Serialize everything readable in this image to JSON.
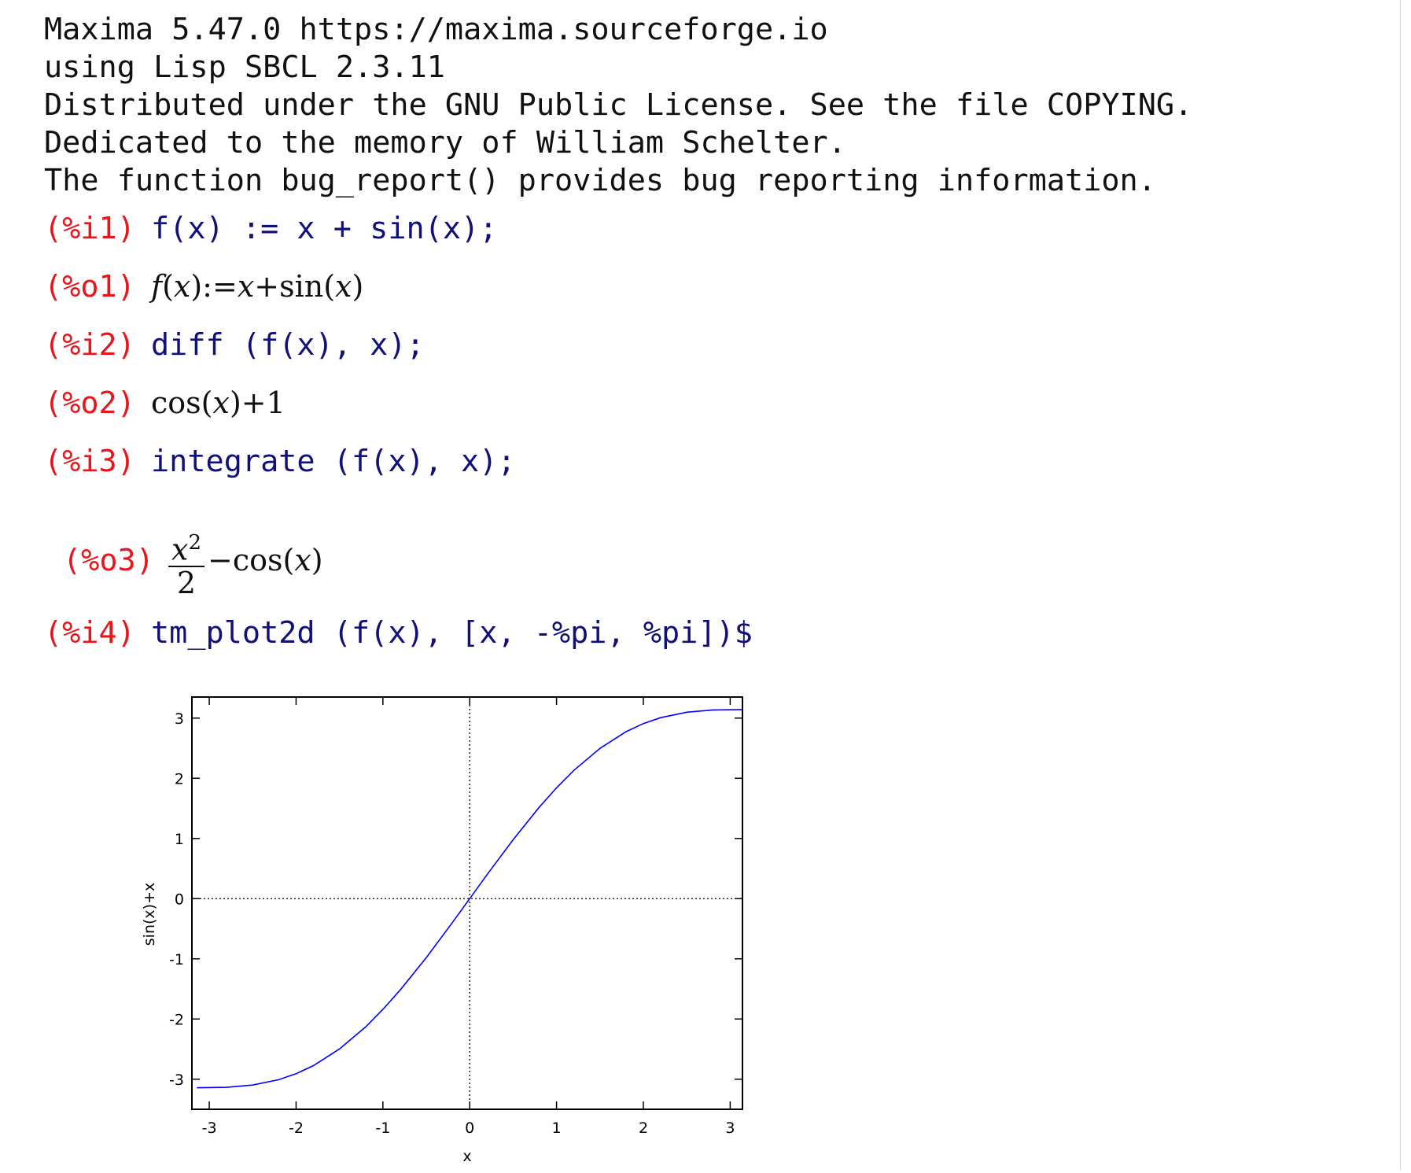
{
  "banner": {
    "line1": "Maxima 5.47.0 https://maxima.sourceforge.io",
    "line2": "using Lisp SBCL 2.3.11",
    "line3": "Distributed under the GNU Public License. See the file COPYING.",
    "line4": "Dedicated to the memory of William Schelter.",
    "line5": "The function bug_report() provides bug reporting information."
  },
  "session": {
    "i1": {
      "prompt": "(%i1)",
      "input": "f(x) := x + sin(x);"
    },
    "o1": {
      "prompt": "(%o1)",
      "f": "f",
      "x1": "x",
      "assign": "):=",
      "x2": "x",
      "plus": "+sin(",
      "x3": "x",
      "close": ")"
    },
    "i2": {
      "prompt": "(%i2)",
      "input": "diff (f(x), x);"
    },
    "o2": {
      "prompt": "(%o2)",
      "pre": "cos(",
      "x": "x",
      "post": ")+1"
    },
    "i3": {
      "prompt": "(%i3)",
      "input": "integrate (f(x), x);"
    },
    "o3": {
      "prompt": "(%o3)",
      "num": "x",
      "exp": "2",
      "den": "2",
      "post1": "−cos(",
      "x": "x",
      "post2": ")"
    },
    "i4": {
      "prompt": "(%i4)",
      "input": "tm_plot2d (f(x), [x, -%pi, %pi])$"
    }
  },
  "colors": {
    "prompt": "#e8151a",
    "input": "#10107a",
    "output": "#111111",
    "curve": "#0000ff"
  },
  "chart_data": {
    "type": "line",
    "function": "x + sin(x)",
    "xlabel": "x",
    "ylabel": "sin(x)+x",
    "xlim": [
      -3.2,
      3.1416
    ],
    "ylim": [
      -3.5,
      3.35
    ],
    "xticks": [
      -3,
      -2,
      -1,
      0,
      1,
      2,
      3
    ],
    "yticks": [
      -3,
      -2,
      -1,
      0,
      1,
      2,
      3
    ],
    "xticklabels": [
      "-3",
      "-2",
      "-1",
      "0",
      "1",
      "2",
      "3"
    ],
    "yticklabels": [
      "-3",
      "-2",
      "-1",
      "0",
      "1",
      "2",
      "3"
    ],
    "zero_axes": "dotted",
    "series": [
      {
        "x": [
          -3.1416,
          -2.8,
          -2.5,
          -2.2,
          -2.0,
          -1.8,
          -1.5,
          -1.2,
          -1.0,
          -0.8,
          -0.5,
          -0.2,
          0,
          0.2,
          0.5,
          0.8,
          1.0,
          1.2,
          1.5,
          1.8,
          2.0,
          2.2,
          2.5,
          2.8,
          3.1416
        ],
        "y": [
          -3.142,
          -3.135,
          -3.098,
          -3.008,
          -2.909,
          -2.774,
          -2.497,
          -2.132,
          -1.841,
          -1.517,
          -0.979,
          -0.399,
          0,
          0.399,
          0.979,
          1.517,
          1.841,
          2.132,
          2.497,
          2.774,
          2.909,
          3.008,
          3.098,
          3.135,
          3.142
        ]
      }
    ]
  }
}
